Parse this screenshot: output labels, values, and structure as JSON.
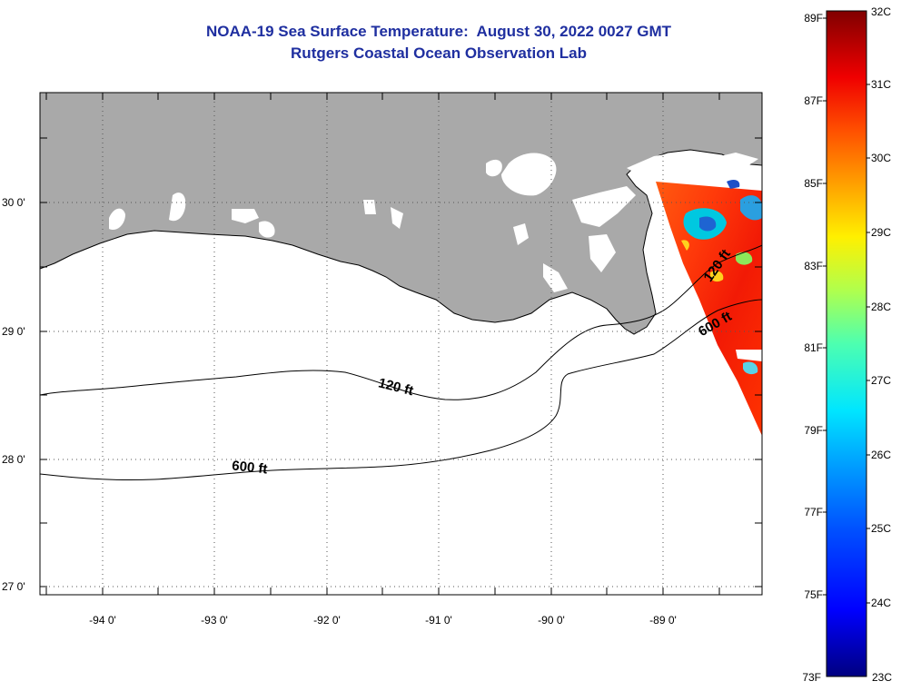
{
  "title_line1": "NOAA-19 Sea Surface Temperature:  August 30, 2022 0027 GMT",
  "title_line2": "Rutgers Coastal Ocean Observation Lab",
  "map": {
    "longitude_labels": [
      "-94 0'",
      "-93 0'",
      "-92 0'",
      "-91 0'",
      "-90 0'",
      "-89 0'"
    ],
    "latitude_labels": [
      "30 0'",
      "29 0'",
      "28 0'",
      "27 0'"
    ],
    "contour_labels": [
      "120 ft",
      "120 ft",
      "600 ft",
      "600 ft"
    ],
    "colors": {
      "land": "#a9a9a9",
      "ocean_no_data": "#ffffff",
      "grid": "#555555"
    }
  },
  "colorbar": {
    "fahrenheit_labels": [
      "89F",
      "87F",
      "85F",
      "83F",
      "81F",
      "79F",
      "77F",
      "75F",
      "73F"
    ],
    "celsius_labels": [
      "32C",
      "31C",
      "30C",
      "29C",
      "28C",
      "27C",
      "26C",
      "25C",
      "24C",
      "23C"
    ]
  }
}
